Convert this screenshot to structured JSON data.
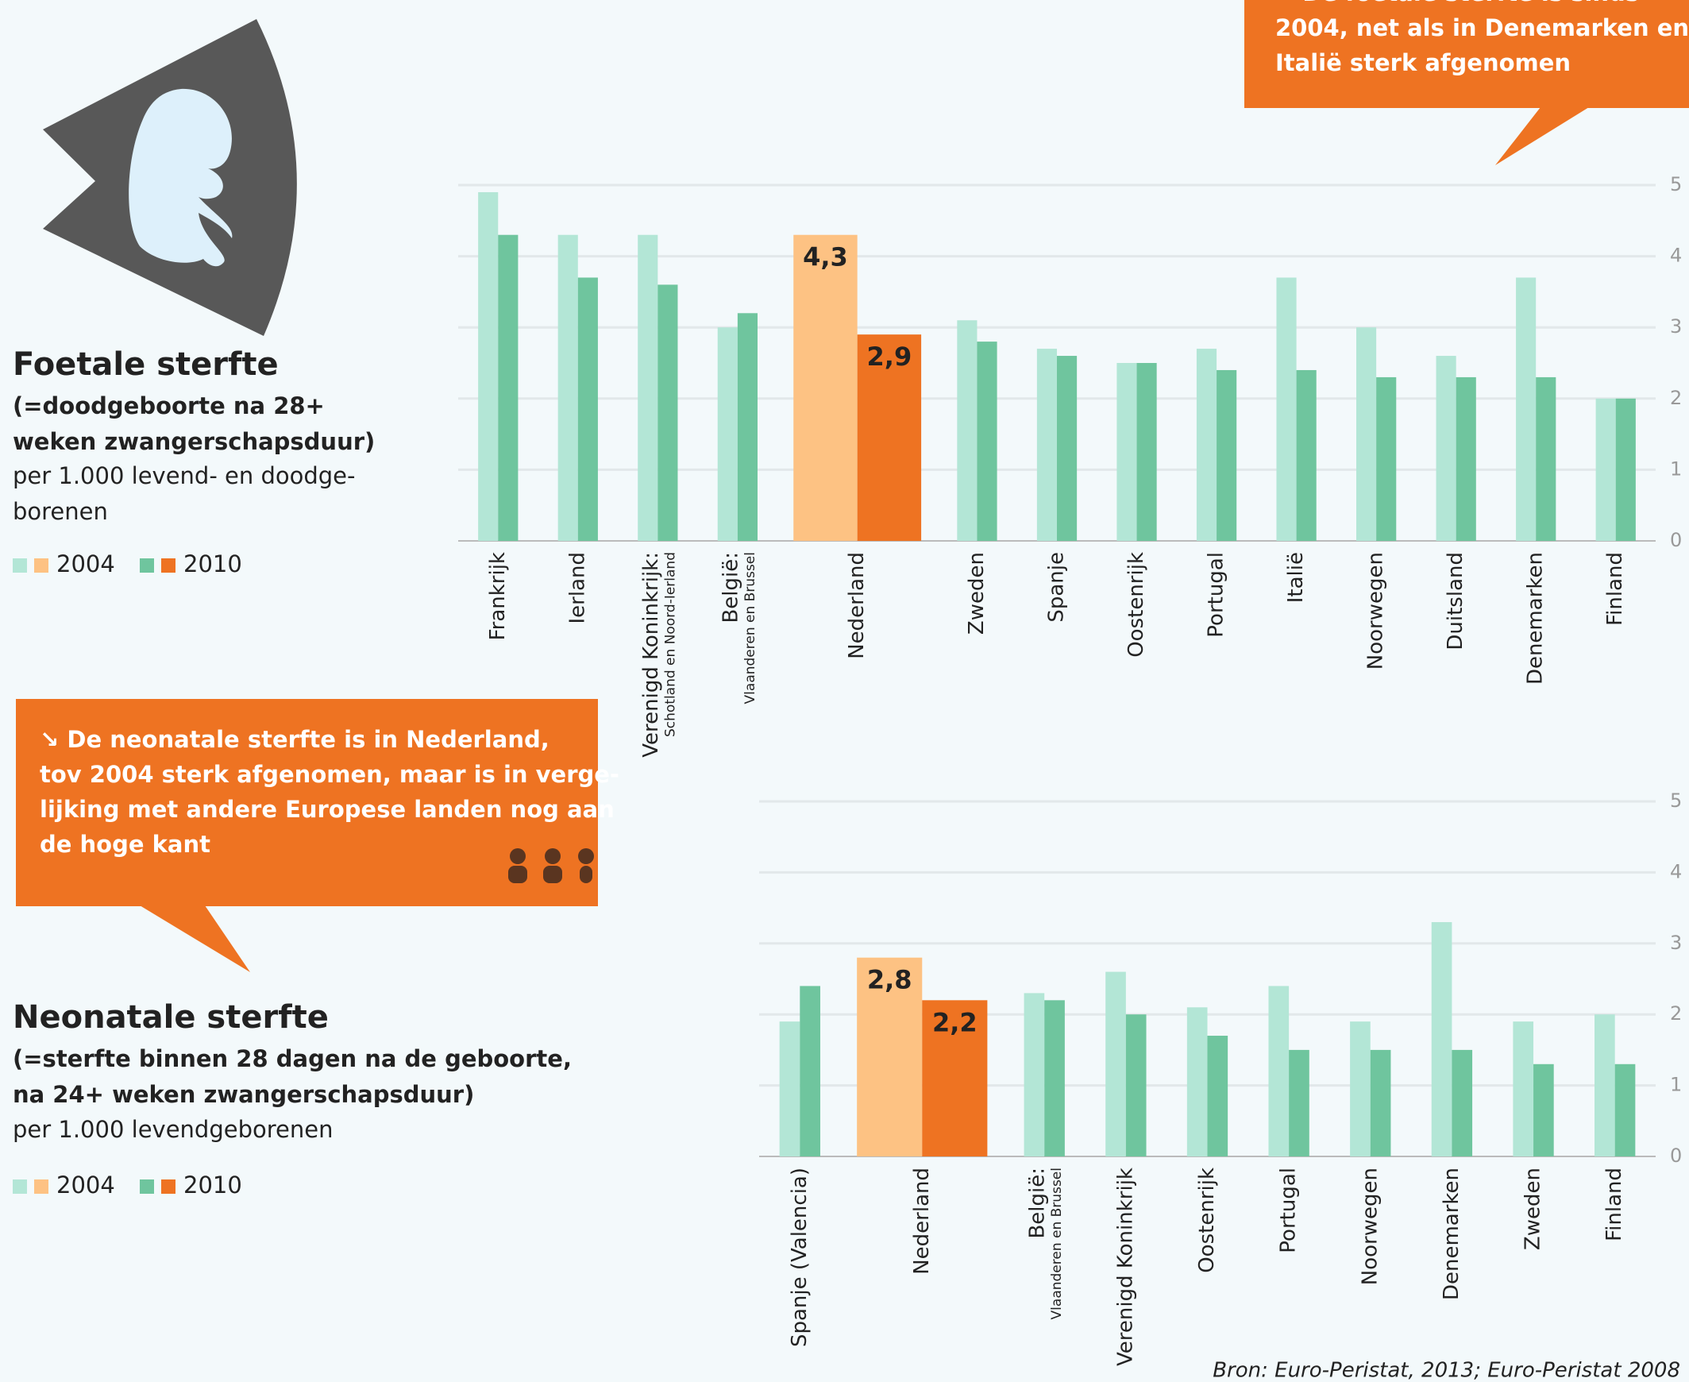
{
  "chart_data": [
    {
      "type": "bar",
      "title": "Foetale sterfte",
      "subtitle": [
        "(=doodgeboorte na 28+",
        "weken zwangerschapsduur)"
      ],
      "unit": [
        "per 1.000 levend- en doodge-",
        "borenen"
      ],
      "annotation": [
        "↘ De foetale sterfte is sinds",
        "2004, net als in Denemarken en",
        "Italië sterk afgenomen"
      ],
      "categories": [
        "Frankrijk",
        "Ierland",
        "Verenigd Koninkrijk:",
        "België:",
        "Nederland",
        "Zweden",
        "Spanje",
        "Oostenrijk",
        "Portugal",
        "Italië",
        "Noorwegen",
        "Duitsland",
        "Denemarken",
        "Finland"
      ],
      "category_notes": [
        null,
        null,
        "Schotland en Noord-Ierland",
        "Vlaanderen en Brussel",
        null,
        null,
        null,
        null,
        null,
        null,
        null,
        null,
        null,
        null
      ],
      "highlight": 4,
      "series": [
        {
          "name": "2004",
          "color": "#b3e6d6",
          "highlight_color": "#fdc283",
          "values": [
            4.9,
            4.3,
            4.3,
            3.0,
            4.3,
            3.1,
            2.7,
            2.5,
            2.7,
            3.7,
            3.0,
            2.6,
            3.7,
            2.0
          ],
          "value_labels": [
            null,
            null,
            null,
            null,
            "4,3",
            null,
            null,
            null,
            null,
            null,
            null,
            null,
            null,
            null
          ]
        },
        {
          "name": "2010",
          "color": "#6fc59e",
          "highlight_color": "#ee7322",
          "values": [
            4.3,
            3.7,
            3.6,
            3.2,
            2.9,
            2.8,
            2.6,
            2.5,
            2.4,
            2.4,
            2.3,
            2.3,
            2.3,
            2.0
          ],
          "value_labels": [
            null,
            null,
            null,
            null,
            "2,9",
            null,
            null,
            null,
            null,
            null,
            null,
            null,
            null,
            null
          ]
        }
      ],
      "ylim": [
        0,
        5
      ],
      "yticks": [
        0,
        1,
        2,
        3,
        4,
        5
      ],
      "grid": true
    },
    {
      "type": "bar",
      "title": "Neonatale sterfte",
      "subtitle": [
        "(=sterfte binnen 28 dagen na de geboorte,",
        "na 24+ weken zwangerschapsduur)"
      ],
      "unit": [
        "per 1.000 levendgeborenen"
      ],
      "annotation": [
        "↘ De neonatale sterfte is in Nederland,",
        "tov 2004 sterk afgenomen, maar is in verge-",
        "lijking met andere Europese landen nog aan",
        "de hoge kant"
      ],
      "categories": [
        "Spanje (Valencia)",
        "Nederland",
        "België:",
        "Verenigd Koninkrijk",
        "Oostenrijk",
        "Portugal",
        "Noorwegen",
        "Denemarken",
        "Zweden",
        "Finland"
      ],
      "category_notes": [
        null,
        null,
        "Vlaanderen en Brussel",
        null,
        null,
        null,
        null,
        null,
        null,
        null
      ],
      "highlight": 1,
      "series": [
        {
          "name": "2004",
          "color": "#b3e6d6",
          "highlight_color": "#fdc283",
          "values": [
            1.9,
            2.8,
            2.3,
            2.6,
            2.1,
            2.4,
            1.9,
            3.3,
            1.9,
            2.0
          ],
          "value_labels": [
            null,
            "2,8",
            null,
            null,
            null,
            null,
            null,
            null,
            null,
            null
          ]
        },
        {
          "name": "2010",
          "color": "#6fc59e",
          "highlight_color": "#ee7322",
          "values": [
            2.4,
            2.2,
            2.2,
            2.0,
            1.7,
            1.5,
            1.5,
            1.5,
            1.3,
            1.3
          ],
          "value_labels": [
            null,
            "2,2",
            null,
            null,
            null,
            null,
            null,
            null,
            null,
            null
          ]
        }
      ],
      "ylim": [
        0,
        5
      ],
      "yticks": [
        0,
        1,
        2,
        3,
        4,
        5
      ],
      "grid": true
    }
  ],
  "source": "Bron: Euro-Peristat, 2013; Euro-Peristat 2008"
}
